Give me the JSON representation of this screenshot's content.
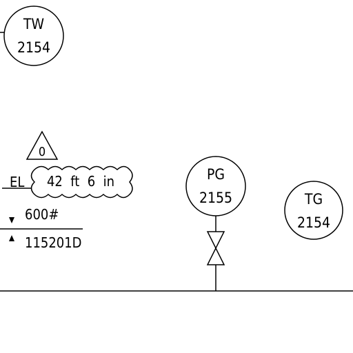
{
  "instruments": {
    "tw": {
      "tag": "TW",
      "number": "2154"
    },
    "pg": {
      "tag": "PG",
      "number": "2155"
    },
    "tg": {
      "tag": "TG",
      "number": "2154"
    }
  },
  "revision": {
    "label": "0"
  },
  "elevation": {
    "prefix": "EL",
    "value": "42  ft  6  in"
  },
  "rating": {
    "text": "600#"
  },
  "line_number": {
    "text": "115201D"
  },
  "colors": {
    "line": "#000000",
    "background": "#ffffff"
  }
}
